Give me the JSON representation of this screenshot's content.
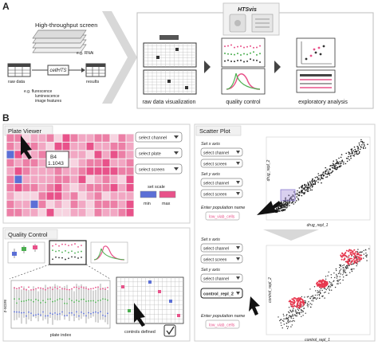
{
  "panel_a": {
    "letter": "A",
    "screen_title": "High-throughput screen",
    "rnai_label": "e.g. RNAi",
    "raw_data_label": "raw data",
    "cellhts_label": "cellHTS",
    "results_label": "results",
    "examples": [
      "e.g. flurescence",
      "luminescence",
      "image features"
    ],
    "htsvis_title": "HTSvis",
    "stages": [
      "raw data visualization",
      "quality control",
      "exploratory analysis"
    ]
  },
  "panel_b": {
    "letter": "B",
    "plate_viewer": {
      "title": "Plate Viewer",
      "selects": [
        "select channel",
        "select plate",
        "select screen"
      ],
      "tooltip_well": "B4",
      "tooltip_value": "1.1043",
      "scale_title": "set scale",
      "scale_min": "min",
      "scale_max": "max",
      "colors": {
        "pink": "#e8528a",
        "pale": "#f7d3e0",
        "blue": "#5b6fd6"
      }
    },
    "quality_control": {
      "title": "Quality Control",
      "y_label": "z-score",
      "x_label": "plate index",
      "controls_label": "controls defined"
    },
    "scatter_plot": {
      "title": "Scatter Plot",
      "x_axis_title": "Set x axis",
      "y_axis_title": "Set y axis",
      "select_channel": "select channel",
      "select_screen": "select screen",
      "population_title": "Enter population name",
      "population_value": "low_viab_cells",
      "y_selected": "control_repl_2",
      "top_x_label": "drug_repl_1",
      "top_y_label": "drug_repl_2",
      "bottom_x_label": "control_repl_1",
      "bottom_y_label": "control_repl_2"
    }
  }
}
